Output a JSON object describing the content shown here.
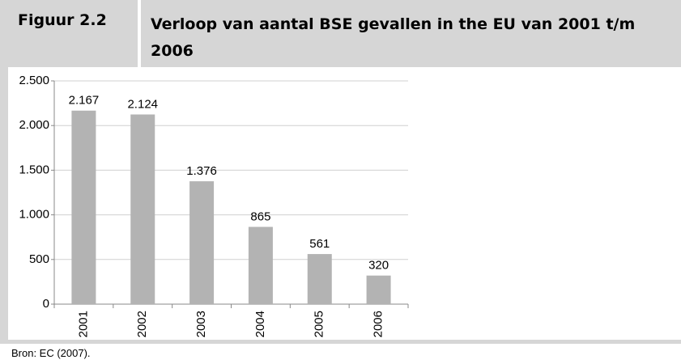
{
  "figure_label": "Figuur 2.2",
  "source": "Bron: EC (2007).",
  "chart_data": {
    "type": "bar",
    "title": "Verloop van aantal BSE gevallen in the EU van 2001 t/m 2006",
    "categories": [
      "2001",
      "2002",
      "2003",
      "2004",
      "2005",
      "2006"
    ],
    "values": [
      2167,
      2124,
      1376,
      865,
      561,
      320
    ],
    "value_labels": [
      "2.167",
      "2.124",
      "1.376",
      "865",
      "561",
      "320"
    ],
    "color": "#b3b3b3",
    "ylim": [
      0,
      2500
    ],
    "yticks": [
      0,
      500,
      {
        "value": 1000,
        "label": "1.000"
      },
      {
        "value": 1500,
        "label": "1.500"
      },
      {
        "value": 2000,
        "label": "2.000"
      },
      {
        "value": 2500,
        "label": "2.500"
      }
    ],
    "grid": true
  }
}
